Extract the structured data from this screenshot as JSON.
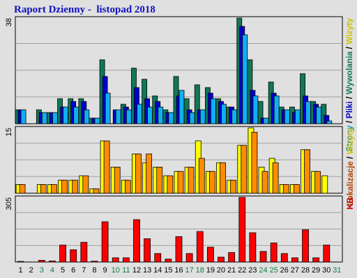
{
  "title": "Raport Dzienny -  listopad 2018",
  "chart_data": [
    {
      "type": "bar",
      "name_label": "Strony / Pliki / Wywolania / Wizyty",
      "ymax_label": "38",
      "categories": [
        "1",
        "2",
        "3",
        "4",
        "5",
        "6",
        "7",
        "8",
        "9",
        "10",
        "11",
        "12",
        "13",
        "14",
        "15",
        "16",
        "17",
        "18",
        "19",
        "20",
        "21",
        "22",
        "23",
        "24",
        "25",
        "26",
        "27",
        "28",
        "29",
        "30",
        "31"
      ],
      "weekend_days": [
        "3",
        "4",
        "10",
        "11",
        "17",
        "18",
        "24",
        "25",
        "31"
      ],
      "ylim": [
        0,
        38
      ],
      "series": [
        {
          "name": "Wywolania",
          "color": "#107858",
          "values": [
            5,
            0,
            5,
            4,
            9,
            9,
            9,
            2,
            23,
            0,
            7,
            20,
            16,
            10,
            5,
            17,
            9,
            14,
            13,
            9,
            6,
            38,
            23,
            8,
            15,
            6,
            6,
            18,
            8,
            7,
            0
          ]
        },
        {
          "name": "Pliki",
          "color": "#0000d0",
          "values": [
            5,
            0,
            4,
            4,
            6,
            8,
            8,
            2,
            17,
            5,
            6,
            13,
            9,
            8,
            4,
            10,
            5,
            5,
            11,
            8,
            6,
            35,
            12,
            2,
            11,
            5,
            4,
            10,
            7,
            3,
            0
          ]
        },
        {
          "name": "Strony",
          "color": "#10b0f0",
          "values": [
            5,
            0,
            4,
            4,
            6,
            6,
            5,
            2,
            11,
            5,
            5,
            7,
            6,
            6,
            4,
            12,
            4,
            5,
            9,
            7,
            5,
            32,
            10,
            2,
            10,
            5,
            5,
            8,
            6,
            1,
            0
          ]
        }
      ],
      "legend": [
        {
          "text": "Strony",
          "color": "#1090b0"
        },
        {
          "text": " / ",
          "color": "#000000"
        },
        {
          "text": "Pliki",
          "color": "#0000c0"
        },
        {
          "text": " / ",
          "color": "#000000"
        },
        {
          "text": "Wywolania",
          "color": "#107858"
        },
        {
          "text": " / ",
          "color": "#000000"
        },
        {
          "text": "Wizyty",
          "color": "#d0c000"
        }
      ]
    },
    {
      "type": "bar",
      "ymax_label": "15",
      "ylim": [
        0,
        15
      ],
      "series": [
        {
          "name": "Wizyty",
          "color": "#ffff00",
          "values": [
            2,
            0,
            2,
            2,
            3,
            3,
            4,
            1,
            12,
            6,
            3,
            9,
            7,
            6,
            4,
            5,
            6,
            12,
            5,
            7,
            3,
            11,
            15,
            6,
            8,
            2,
            2,
            10,
            5,
            4,
            0
          ]
        },
        {
          "name": "Lokalizacje",
          "color": "#ff8c00",
          "values": [
            2,
            0,
            2,
            2,
            3,
            3,
            4,
            1,
            12,
            6,
            3,
            9,
            9,
            6,
            4,
            5,
            6,
            8,
            5,
            7,
            3,
            11,
            14,
            5,
            7,
            2,
            2,
            10,
            5,
            0,
            0
          ]
        }
      ],
      "legend": [
        {
          "text": "Lokalizacje",
          "color": "#b04000"
        },
        {
          "text": " / ",
          "color": "#000000"
        },
        {
          "text": "Wizyty",
          "color": "#d0c000"
        }
      ]
    },
    {
      "type": "bar",
      "ymax_label": "305",
      "ylim": [
        0,
        305
      ],
      "series": [
        {
          "name": "KB",
          "color": "#ff0000",
          "values": [
            3,
            0,
            8,
            5,
            80,
            58,
            93,
            4,
            190,
            20,
            20,
            200,
            110,
            40,
            14,
            120,
            40,
            144,
            70,
            23,
            45,
            305,
            138,
            50,
            90,
            40,
            20,
            152,
            20,
            80,
            0
          ]
        }
      ],
      "legend": [
        {
          "text": "KB",
          "color": "#c00000"
        }
      ]
    }
  ]
}
